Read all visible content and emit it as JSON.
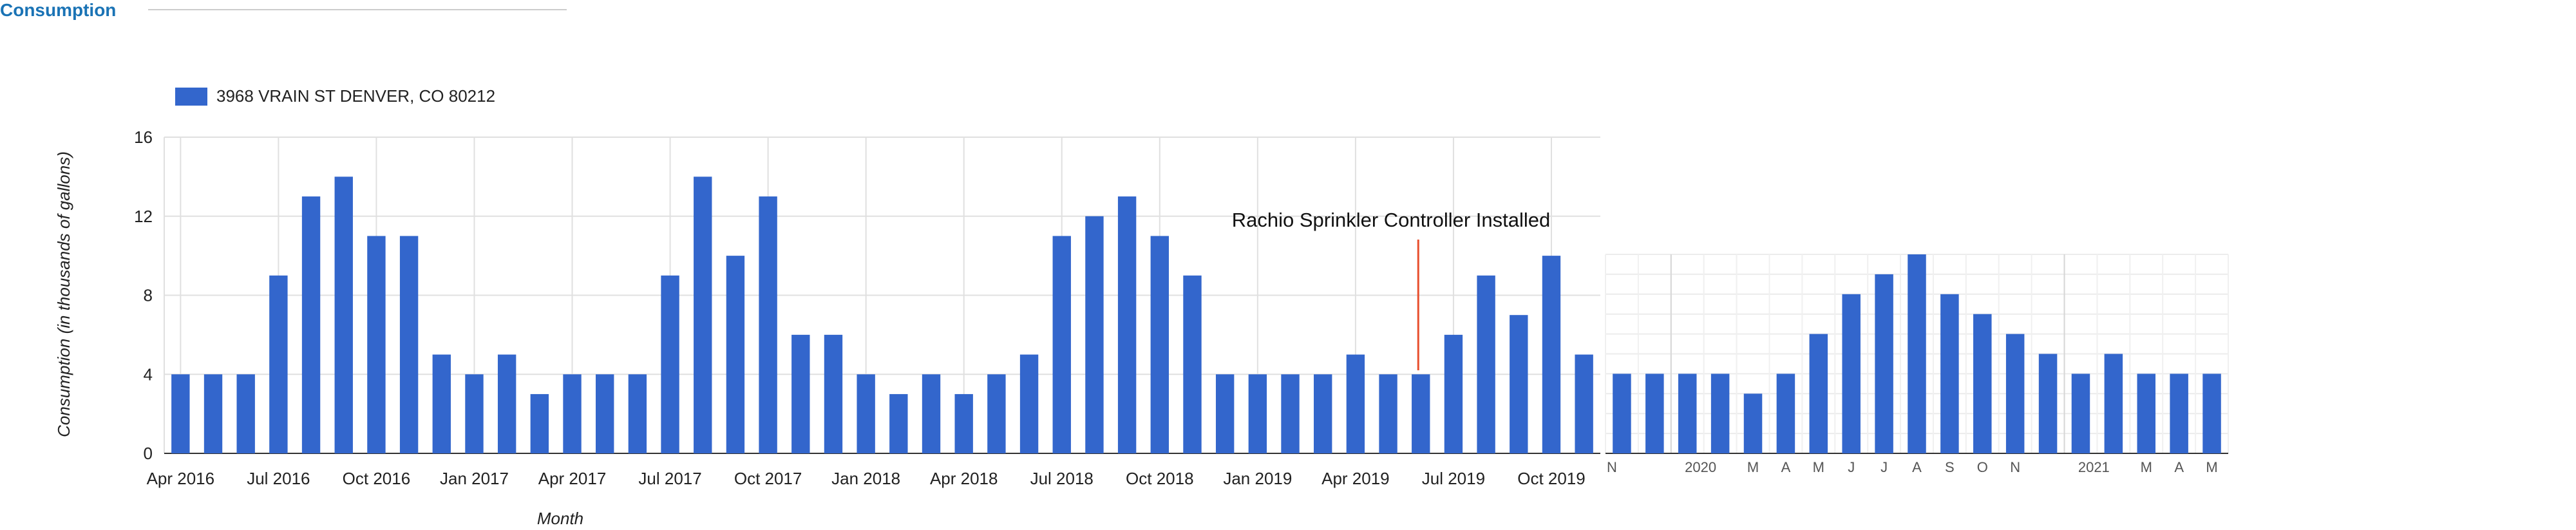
{
  "section": {
    "title": "Consumption"
  },
  "colors": {
    "bar": "#3366cc",
    "grid": "#e0e0e0",
    "axis": "#333333",
    "annotation_line": "#e8502f"
  },
  "chart_data": [
    {
      "type": "bar",
      "legend": {
        "label": "3968 VRAIN ST DENVER, CO 80212",
        "placement": "top-left"
      },
      "xlabel": "Month",
      "ylabel": "Consumption (in thousands of gallons)",
      "ylim": [
        0,
        16
      ],
      "yticks": [
        0,
        4,
        8,
        12,
        16
      ],
      "grid": true,
      "x_tick_labels": [
        "Apr 2016",
        "Jul 2016",
        "Oct 2016",
        "Jan 2017",
        "Apr 2017",
        "Jul 2017",
        "Oct 2017",
        "Jan 2018",
        "Apr 2018",
        "Jul 2018",
        "Oct 2018",
        "Jan 2019",
        "Apr 2019",
        "Jul 2019",
        "Oct 2019"
      ],
      "categories": [
        "2016-04",
        "2016-05",
        "2016-06",
        "2016-07",
        "2016-08",
        "2016-09",
        "2016-10",
        "2016-11",
        "2016-12",
        "2017-01",
        "2017-02",
        "2017-03",
        "2017-04",
        "2017-05",
        "2017-06",
        "2017-07",
        "2017-08",
        "2017-09",
        "2017-10",
        "2017-11",
        "2017-12",
        "2018-01",
        "2018-02",
        "2018-03",
        "2018-04",
        "2018-05",
        "2018-06",
        "2018-07",
        "2018-08",
        "2018-09",
        "2018-10",
        "2018-11",
        "2018-12",
        "2019-01",
        "2019-02",
        "2019-03",
        "2019-04",
        "2019-05",
        "2019-06",
        "2019-07",
        "2019-08",
        "2019-09",
        "2019-10",
        "2019-11"
      ],
      "values": [
        4,
        4,
        4,
        9,
        13,
        14,
        11,
        11,
        5,
        4,
        5,
        3,
        4,
        4,
        4,
        9,
        14,
        10,
        13,
        6,
        6,
        4,
        3,
        4,
        3,
        4,
        5,
        11,
        12,
        13,
        11,
        9,
        4,
        4,
        4,
        4,
        5,
        4,
        4,
        6,
        9,
        7,
        10,
        5
      ],
      "annotation": {
        "text": "Rachio Sprinkler Controller Installed",
        "at_category": "2019-06"
      }
    },
    {
      "type": "bar",
      "ylim": [
        0,
        10
      ],
      "grid": true,
      "x_tick_labels": [
        "N",
        "2020",
        "M",
        "A",
        "M",
        "J",
        "J",
        "A",
        "S",
        "O",
        "N",
        "2021",
        "M",
        "A",
        "M"
      ],
      "categories": [
        "2019-11",
        "2019-12",
        "2020-01",
        "2020-02",
        "2020-03",
        "2020-04",
        "2020-05",
        "2020-06",
        "2020-07",
        "2020-08",
        "2020-09",
        "2020-10",
        "2020-11",
        "2020-12",
        "2021-01",
        "2021-02",
        "2021-03",
        "2021-04",
        "2021-05"
      ],
      "values": [
        4,
        4,
        4,
        4,
        3,
        4,
        6,
        8,
        9,
        10,
        8,
        7,
        6,
        5,
        4,
        5,
        4,
        4,
        4
      ]
    }
  ]
}
